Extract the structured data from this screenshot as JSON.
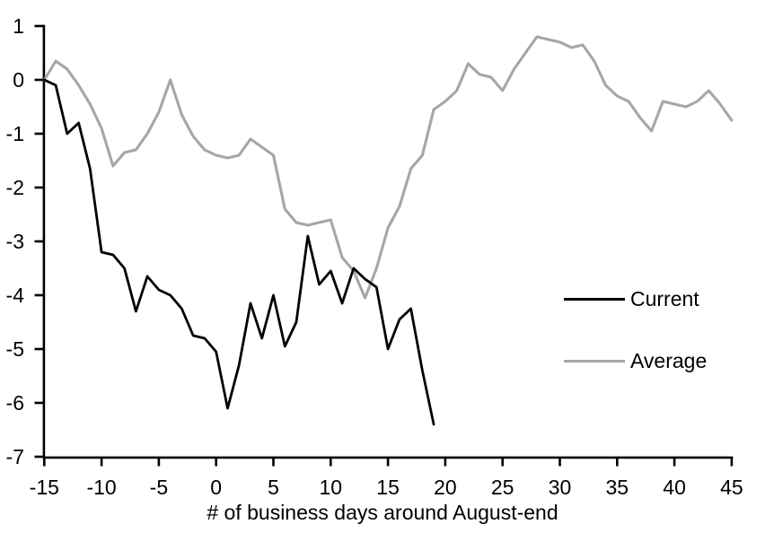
{
  "chart_data": {
    "type": "line",
    "title": "",
    "xlabel": "# of business days around August-end",
    "ylabel": "",
    "xlim": [
      -15,
      45
    ],
    "ylim": [
      -7,
      1
    ],
    "x_ticks": [
      -15,
      -10,
      -5,
      0,
      5,
      10,
      15,
      20,
      25,
      30,
      35,
      40,
      45
    ],
    "y_ticks": [
      1,
      0,
      -1,
      -2,
      -3,
      -4,
      -5,
      -6,
      -7
    ],
    "grid": false,
    "legend_position": "center-right",
    "axis_color": "#000000",
    "series": [
      {
        "name": "Current",
        "color": "#000000",
        "x": [
          -15,
          -14,
          -13,
          -12,
          -11,
          -10,
          -9,
          -8,
          -7,
          -6,
          -5,
          -4,
          -3,
          -2,
          -1,
          0,
          1,
          2,
          3,
          4,
          5,
          6,
          7,
          8,
          9,
          10,
          11,
          12,
          13,
          14,
          15,
          16,
          17,
          18,
          19
        ],
        "values": [
          0.0,
          -0.1,
          -1.0,
          -0.8,
          -1.65,
          -3.2,
          -3.25,
          -3.5,
          -4.3,
          -3.65,
          -3.9,
          -4.0,
          -4.25,
          -4.75,
          -4.8,
          -5.05,
          -6.1,
          -5.3,
          -4.15,
          -4.8,
          -4.0,
          -4.95,
          -4.5,
          -2.9,
          -3.8,
          -3.55,
          -4.15,
          -3.5,
          -3.7,
          -3.85,
          -5.0,
          -4.45,
          -4.25,
          -5.4,
          -6.4
        ]
      },
      {
        "name": "Average",
        "color": "#a6a6a6",
        "x": [
          -15,
          -14,
          -13,
          -12,
          -11,
          -10,
          -9,
          -8,
          -7,
          -6,
          -5,
          -4,
          -3,
          -2,
          -1,
          0,
          1,
          2,
          3,
          4,
          5,
          6,
          7,
          8,
          9,
          10,
          11,
          12,
          13,
          14,
          15,
          16,
          17,
          18,
          19,
          20,
          21,
          22,
          23,
          24,
          25,
          26,
          27,
          28,
          29,
          30,
          31,
          32,
          33,
          34,
          35,
          36,
          37,
          38,
          39,
          40,
          41,
          42,
          43,
          44,
          45
        ],
        "values": [
          0.0,
          0.35,
          0.2,
          -0.1,
          -0.45,
          -0.9,
          -1.6,
          -1.35,
          -1.3,
          -1.0,
          -0.6,
          0.0,
          -0.65,
          -1.05,
          -1.3,
          -1.4,
          -1.45,
          -1.4,
          -1.1,
          -1.25,
          -1.4,
          -2.4,
          -2.65,
          -2.7,
          -2.65,
          -2.6,
          -3.3,
          -3.55,
          -4.05,
          -3.5,
          -2.75,
          -2.35,
          -1.65,
          -1.4,
          -0.55,
          -0.4,
          -0.2,
          0.3,
          0.1,
          0.05,
          -0.2,
          0.2,
          0.5,
          0.8,
          0.75,
          0.7,
          0.6,
          0.65,
          0.35,
          -0.1,
          -0.3,
          -0.4,
          -0.7,
          -0.95,
          -0.4,
          -0.45,
          -0.5,
          -0.4,
          -0.2,
          -0.45,
          -0.75
        ]
      }
    ]
  }
}
